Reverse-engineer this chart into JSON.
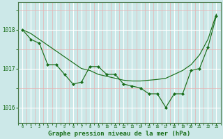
{
  "background_color": "#cce8e8",
  "grid_color_major": "#ffffff",
  "grid_color_minor": "#e8b0b0",
  "line_color": "#1a6e1a",
  "marker_color": "#1a6e1a",
  "xlabel": "Graphe pression niveau de la mer (hPa)",
  "xlabel_fontsize": 6.5,
  "yticks": [
    1016,
    1017,
    1018
  ],
  "xticks": [
    0,
    1,
    2,
    3,
    4,
    5,
    6,
    7,
    8,
    9,
    10,
    11,
    12,
    13,
    14,
    15,
    16,
    17,
    18,
    19,
    20,
    21,
    22,
    23
  ],
  "xlim": [
    -0.5,
    23.5
  ],
  "ylim": [
    1015.6,
    1018.7
  ],
  "series_smooth_x": [
    0,
    1,
    2,
    3,
    4,
    5,
    6,
    7,
    8,
    9,
    10,
    11,
    12,
    13,
    14,
    15,
    16,
    17,
    18,
    19,
    20,
    21,
    22,
    23
  ],
  "series_smooth_y": [
    1018.0,
    1017.9,
    1017.75,
    1017.6,
    1017.45,
    1017.3,
    1017.15,
    1017.0,
    1016.95,
    1016.85,
    1016.8,
    1016.75,
    1016.7,
    1016.68,
    1016.68,
    1016.7,
    1016.72,
    1016.75,
    1016.85,
    1016.95,
    1017.1,
    1017.35,
    1017.75,
    1018.4
  ],
  "series_zigzag_x": [
    0,
    1,
    2,
    3,
    4,
    5,
    6,
    7,
    8,
    9,
    10,
    11,
    12,
    13,
    14,
    15,
    16,
    17,
    18,
    19,
    20,
    21,
    22,
    23
  ],
  "series_zigzag_y": [
    1018.0,
    1017.75,
    1017.65,
    1017.1,
    1017.1,
    1016.85,
    1016.6,
    1016.65,
    1017.05,
    1017.05,
    1016.85,
    1016.85,
    1016.6,
    1016.55,
    1016.5,
    1016.35,
    1016.35,
    1016.0,
    1016.35,
    1016.35,
    1016.95,
    1017.0,
    1017.55,
    1018.35
  ]
}
